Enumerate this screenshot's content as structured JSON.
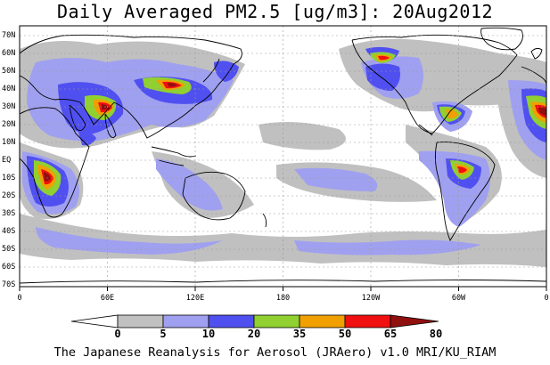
{
  "title": "Daily Averaged PM2.5 [ug/m3]: 20Aug2012",
  "lat_labels": [
    "70N",
    "60N",
    "50N",
    "40N",
    "30N",
    "20N",
    "10N",
    "EQ",
    "10S",
    "20S",
    "30S",
    "40S",
    "50S",
    "60S",
    "70S"
  ],
  "lon_labels": [
    "0",
    "60E",
    "120E",
    "180",
    "120W",
    "60W",
    "0"
  ],
  "colorbar": {
    "levels": [
      "0",
      "5",
      "10",
      "20",
      "35",
      "50",
      "65",
      "80"
    ],
    "colors": [
      "#ffffff",
      "#c0c0c0",
      "#a0a0f0",
      "#5050f0",
      "#90d030",
      "#f0a000",
      "#f01010",
      "#901010"
    ]
  },
  "footer": "The Japanese Reanalysis for Aerosol (JRAero) v1.0 MRI/KU_RIAM"
}
